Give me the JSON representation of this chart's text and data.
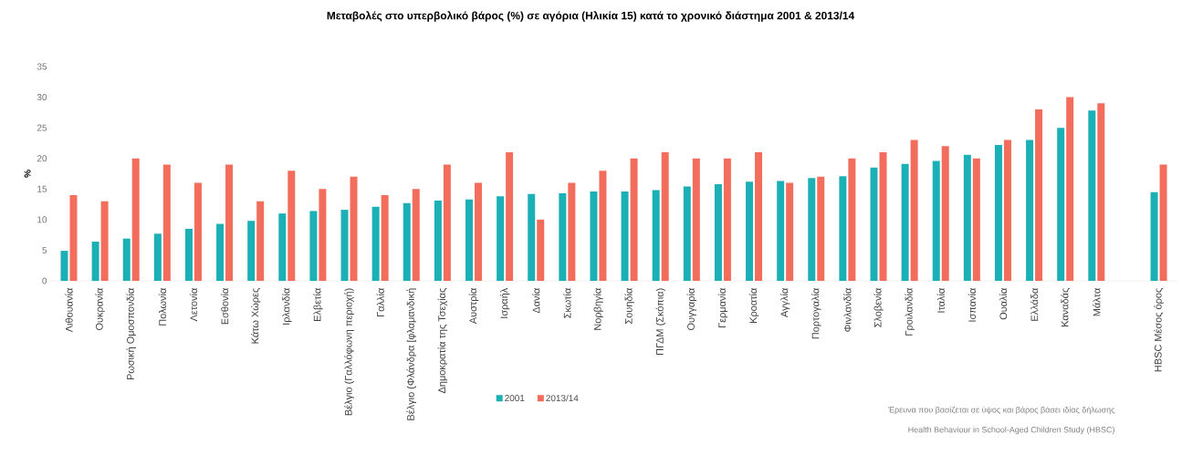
{
  "chart_data": {
    "type": "bar",
    "title": "Μεταβολές στο υπερβολικό βάρος (%)  σε αγόρια (Ηλικία 15) κατά το χρονικό διάστημα 2001 & 2013/14",
    "ylabel": "%",
    "categories": [
      "Λιθουανία",
      "Ουκρανία",
      "Ρωσική Ομοσπονδία",
      "Πολωνία",
      "Λετονία",
      "Εσθονία",
      "Κάτω Χώρες",
      "Ιρλανδία",
      "Ελβετία",
      "Βέλγιο (Γαλλόφωνη περιοχή)",
      "Γαλλία",
      "Βέλγιο (Φλάνδρα [φλαμανδική",
      "Δημοκρατία της Τσεχίας",
      "Αυστρία",
      "Ισραήλ",
      "Δανία",
      "Σκωτία",
      "Νορβηγία",
      "Σουηδία",
      "ΠΓΔΜ (Σκόπια)",
      "Ουγγαρία",
      "Γερμανία",
      "Κροατία",
      "Αγγλία",
      "Πορτογαλία",
      "Φινλανδία",
      "Σλοβενία",
      "Γροιλανδία",
      "Ιταλία",
      "Ισπανία",
      "Ουαλία",
      "Ελλάδα",
      "Καναδάς",
      "Μάλτα",
      null,
      "HBSC Μέσος όρος"
    ],
    "series": [
      {
        "name": "2001",
        "color": "#1bb0b5",
        "values": [
          4.9,
          6.4,
          6.9,
          7.7,
          8.5,
          9.3,
          9.8,
          11.0,
          11.4,
          11.6,
          12.1,
          12.7,
          13.1,
          13.3,
          13.8,
          14.2,
          14.3,
          14.6,
          14.6,
          14.8,
          15.4,
          15.8,
          16.2,
          16.3,
          16.8,
          17.1,
          18.5,
          19.1,
          19.6,
          20.6,
          22.2,
          23,
          25,
          27.8,
          null,
          14.5
        ]
      },
      {
        "name": "2013/14",
        "color": "#f26d5b",
        "values": [
          14,
          13,
          20,
          19,
          16,
          19,
          13,
          18,
          15,
          17,
          14,
          15,
          19,
          16,
          21,
          10,
          16,
          18,
          20,
          21,
          20,
          20,
          21,
          16,
          17,
          20,
          21,
          23,
          22,
          20,
          23,
          28,
          30,
          29,
          null,
          19
        ]
      }
    ],
    "ylim": [
      0,
      35
    ],
    "yticks": [
      0,
      5,
      10,
      15,
      20,
      25,
      30,
      35
    ],
    "grid": false,
    "legend": "bottom",
    "annotations": [
      "Έρευνα που βασίζεται σε ύψος και βάρος βάσει ιδίας δήλωσης",
      "Health Behaviour in School-Aged Children Study (HBSC)"
    ]
  }
}
